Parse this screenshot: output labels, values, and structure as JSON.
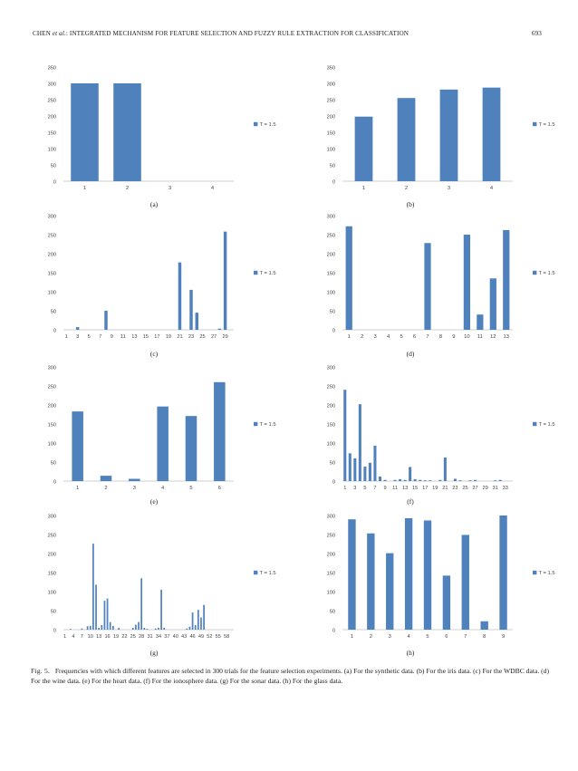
{
  "header": {
    "author": "CHEN",
    "etal": "et al.",
    "title_rest": ": INTEGRATED MECHANISM FOR FEATURE SELECTION AND FUZZY RULE EXTRACTION FOR CLASSIFICATION",
    "page": "693"
  },
  "colors": {
    "bar": "#4f81bd",
    "axis": "#bfbfbf",
    "text": "#444444"
  },
  "chart_data": [
    {
      "id": "a",
      "panel": "(a)",
      "type": "bar",
      "title": "",
      "xlabel": "",
      "ylabel": "",
      "categories": [
        "1",
        "2",
        "3",
        "4"
      ],
      "values": [
        300,
        300,
        0,
        0
      ],
      "ylim": [
        0,
        350
      ],
      "yticks": [
        0,
        50,
        100,
        150,
        200,
        250,
        300,
        350
      ],
      "grid": false,
      "legend": "T = 1.5",
      "legend_position": "right",
      "bar_width_frac": 0.65
    },
    {
      "id": "b",
      "panel": "(b)",
      "type": "bar",
      "title": "",
      "xlabel": "",
      "ylabel": "",
      "categories": [
        "1",
        "2",
        "3",
        "4"
      ],
      "values": [
        198,
        255,
        281,
        287
      ],
      "ylim": [
        0,
        350
      ],
      "yticks": [
        0,
        50,
        100,
        150,
        200,
        250,
        300,
        350
      ],
      "grid": false,
      "legend": "T = 1.5",
      "legend_position": "right",
      "bar_width_frac": 0.42
    },
    {
      "id": "c",
      "panel": "(c)",
      "type": "bar",
      "title": "",
      "xlabel": "",
      "ylabel": "",
      "categories": [
        "1",
        "2",
        "3",
        "4",
        "5",
        "6",
        "7",
        "8",
        "9",
        "10",
        "11",
        "12",
        "13",
        "14",
        "15",
        "16",
        "17",
        "18",
        "19",
        "20",
        "21",
        "22",
        "23",
        "24",
        "25",
        "26",
        "27",
        "28",
        "29",
        "30"
      ],
      "tick_labels": [
        "1",
        "",
        "3",
        "",
        "5",
        "",
        "7",
        "",
        "9",
        "",
        "11",
        "",
        "13",
        "",
        "15",
        "",
        "17",
        "",
        "19",
        "",
        "21",
        "",
        "23",
        "",
        "25",
        "",
        "27",
        "",
        "29",
        ""
      ],
      "values": [
        0,
        0,
        7,
        0,
        0,
        0,
        0,
        50,
        0,
        0,
        0,
        0,
        0,
        0,
        0,
        0,
        0,
        0,
        0,
        0,
        177,
        0,
        105,
        45,
        0,
        0,
        0,
        3,
        258,
        0
      ],
      "ylim": [
        0,
        300
      ],
      "yticks": [
        0,
        50,
        100,
        150,
        200,
        250,
        300
      ],
      "grid": false,
      "legend": "T = 1.5",
      "legend_position": "right",
      "bar_width_frac": 0.55
    },
    {
      "id": "d",
      "panel": "(d)",
      "type": "bar",
      "title": "",
      "xlabel": "",
      "ylabel": "",
      "categories": [
        "1",
        "2",
        "3",
        "4",
        "5",
        "6",
        "7",
        "8",
        "9",
        "10",
        "11",
        "12",
        "13"
      ],
      "values": [
        272,
        0,
        0,
        0,
        0,
        0,
        228,
        0,
        0,
        250,
        40,
        135,
        262
      ],
      "ylim": [
        0,
        300
      ],
      "yticks": [
        0,
        50,
        100,
        150,
        200,
        250,
        300
      ],
      "grid": false,
      "legend": "T = 1.5",
      "legend_position": "right",
      "bar_width_frac": 0.5
    },
    {
      "id": "e",
      "panel": "(e)",
      "type": "bar",
      "title": "",
      "xlabel": "",
      "ylabel": "",
      "categories": [
        "1",
        "2",
        "3",
        "4",
        "5",
        "6"
      ],
      "values": [
        183,
        14,
        6,
        196,
        171,
        260
      ],
      "ylim": [
        0,
        300
      ],
      "yticks": [
        0,
        50,
        100,
        150,
        200,
        250,
        300
      ],
      "grid": false,
      "legend": "T = 1.5",
      "legend_position": "right",
      "bar_width_frac": 0.4
    },
    {
      "id": "f",
      "panel": "(f)",
      "type": "bar",
      "title": "",
      "xlabel": "",
      "ylabel": "",
      "categories": [
        "1",
        "2",
        "3",
        "4",
        "5",
        "6",
        "7",
        "8",
        "9",
        "10",
        "11",
        "12",
        "13",
        "14",
        "15",
        "16",
        "17",
        "18",
        "19",
        "20",
        "21",
        "22",
        "23",
        "24",
        "25",
        "26",
        "27",
        "28",
        "29",
        "30",
        "31",
        "32",
        "33",
        "34"
      ],
      "tick_labels": [
        "1",
        "",
        "3",
        "",
        "5",
        "",
        "7",
        "",
        "9",
        "",
        "11",
        "",
        "13",
        "",
        "15",
        "",
        "17",
        "",
        "19",
        "",
        "21",
        "",
        "23",
        "",
        "25",
        "",
        "27",
        "",
        "29",
        "",
        "31",
        "",
        "33",
        ""
      ],
      "values": [
        240,
        73,
        60,
        202,
        38,
        48,
        93,
        12,
        3,
        0,
        3,
        5,
        3,
        37,
        5,
        3,
        2,
        2,
        0,
        3,
        62,
        0,
        6,
        2,
        0,
        2,
        3,
        0,
        0,
        0,
        2,
        3,
        0,
        0
      ],
      "ylim": [
        0,
        300
      ],
      "yticks": [
        0,
        50,
        100,
        150,
        200,
        250,
        300
      ],
      "grid": false,
      "legend": "T = 1.5",
      "legend_position": "right",
      "bar_width_frac": 0.55
    },
    {
      "id": "g",
      "panel": "(g)",
      "type": "bar",
      "title": "",
      "xlabel": "",
      "ylabel": "",
      "categories": [
        "1",
        "2",
        "3",
        "4",
        "5",
        "6",
        "7",
        "8",
        "9",
        "10",
        "11",
        "12",
        "13",
        "14",
        "15",
        "16",
        "17",
        "18",
        "19",
        "20",
        "21",
        "22",
        "23",
        "24",
        "25",
        "26",
        "27",
        "28",
        "29",
        "30",
        "31",
        "32",
        "33",
        "34",
        "35",
        "36",
        "37",
        "38",
        "39",
        "40",
        "41",
        "42",
        "43",
        "44",
        "45",
        "46",
        "47",
        "48",
        "49",
        "50",
        "51",
        "52",
        "53",
        "54",
        "55",
        "56",
        "57",
        "58",
        "59",
        "60"
      ],
      "tick_labels": [
        "1",
        "",
        "",
        "4",
        "",
        "",
        "7",
        "",
        "",
        "10",
        "",
        "",
        "13",
        "",
        "",
        "16",
        "",
        "",
        "19",
        "",
        "",
        "22",
        "",
        "",
        "25",
        "",
        "",
        "28",
        "",
        "",
        "31",
        "",
        "",
        "34",
        "",
        "",
        "37",
        "",
        "",
        "40",
        "",
        "",
        "43",
        "",
        "",
        "46",
        "",
        "",
        "49",
        "",
        "",
        "52",
        "",
        "",
        "55",
        "",
        "",
        "58",
        "",
        ""
      ],
      "values": [
        0,
        0,
        2,
        0,
        0,
        0,
        3,
        0,
        9,
        10,
        226,
        118,
        5,
        12,
        76,
        82,
        20,
        10,
        0,
        5,
        0,
        0,
        0,
        0,
        5,
        13,
        20,
        135,
        5,
        2,
        0,
        0,
        3,
        5,
        105,
        5,
        0,
        0,
        0,
        0,
        0,
        0,
        0,
        3,
        8,
        45,
        12,
        52,
        32,
        65,
        0,
        0,
        0,
        0,
        0,
        0,
        0,
        0,
        0,
        0
      ],
      "ylim": [
        0,
        300
      ],
      "yticks": [
        0,
        50,
        100,
        150,
        200,
        250,
        300
      ],
      "grid": false,
      "legend": "T = 1.5",
      "legend_position": "right",
      "bar_width_frac": 0.55
    },
    {
      "id": "h",
      "panel": "(h)",
      "type": "bar",
      "title": "",
      "xlabel": "",
      "ylabel": "",
      "categories": [
        "1",
        "2",
        "3",
        "4",
        "5",
        "6",
        "7",
        "8",
        "9"
      ],
      "values": [
        290,
        253,
        201,
        293,
        287,
        142,
        249,
        22,
        300
      ],
      "ylim": [
        0,
        300
      ],
      "yticks": [
        0,
        50,
        100,
        150,
        200,
        250,
        300
      ],
      "grid": false,
      "legend": "T = 1.5",
      "legend_position": "right",
      "bar_width_frac": 0.4
    }
  ],
  "caption": {
    "label": "Fig. 5.",
    "text": "Frequencies with which different features are selected in 300 trials for the feature selection experiments. (a) For the synthetic data. (b) For the iris data. (c) For the WDBC data. (d) For the wine data. (e) For the heart data. (f) For the ionosphere data. (g) For the sonar data. (h) For the glass data."
  }
}
